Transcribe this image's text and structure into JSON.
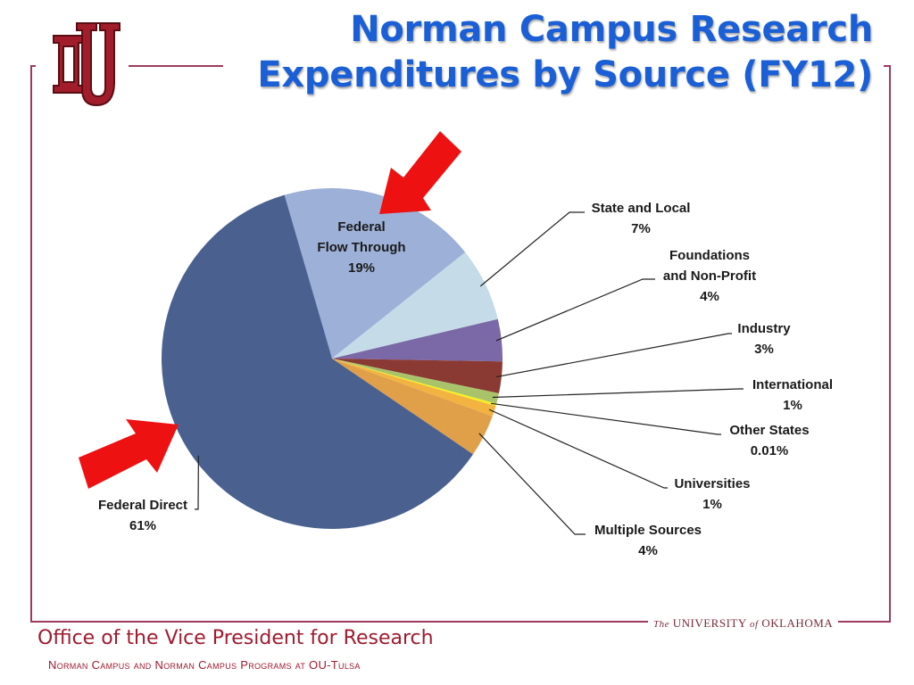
{
  "slide": {
    "title_line1": "Norman Campus Research",
    "title_line2": "Expenditures by Source (FY12)",
    "logo_text": "OU",
    "university_prefix": "The",
    "university_name": "UNIVERSITY",
    "university_of": "of",
    "university_state": "OKLAHOMA",
    "footer_main": "Office of the Vice President for Research",
    "footer_sub": "Norman Campus and Norman Campus Programs at OU-Tulsa"
  },
  "colors": {
    "title": "#1a5fd6",
    "frame": "#9e3b5c",
    "footer": "#9e1c2e",
    "arrow": "#ee1111"
  },
  "chart_data": {
    "type": "pie",
    "title": "Norman Campus Research Expenditures by Source (FY12)",
    "slices": [
      {
        "name": "Federal Flow Through",
        "label_lines": [
          "Federal",
          "Flow Through"
        ],
        "value": 19,
        "label": "19%",
        "color": "#9db0d8"
      },
      {
        "name": "State and Local",
        "label_lines": [
          "State and Local"
        ],
        "value": 7,
        "label": "7%",
        "color": "#c5dce8"
      },
      {
        "name": "Foundations and Non-Profit",
        "label_lines": [
          "Foundations",
          "and Non-Profit"
        ],
        "value": 4,
        "label": "4%",
        "color": "#7b68a6"
      },
      {
        "name": "Industry",
        "label_lines": [
          "Industry"
        ],
        "value": 3,
        "label": "3%",
        "color": "#8b3a33"
      },
      {
        "name": "International",
        "label_lines": [
          "International"
        ],
        "value": 1,
        "label": "1%",
        "color": "#a8c36a"
      },
      {
        "name": "Other States",
        "label_lines": [
          "Other States"
        ],
        "value": 0.01,
        "label": "0.01%",
        "color": "#f5f01e"
      },
      {
        "name": "Universities",
        "label_lines": [
          "Universities"
        ],
        "value": 1,
        "label": "1%",
        "color": "#f2b340"
      },
      {
        "name": "Multiple Sources",
        "label_lines": [
          "Multiple Sources"
        ],
        "value": 4,
        "label": "4%",
        "color": "#e0a04a"
      },
      {
        "name": "Federal Direct",
        "label_lines": [
          "Federal Direct"
        ],
        "value": 61,
        "label": "61%",
        "color": "#4a6190"
      }
    ],
    "highlighted": [
      "Federal Flow Through",
      "Federal Direct"
    ]
  }
}
